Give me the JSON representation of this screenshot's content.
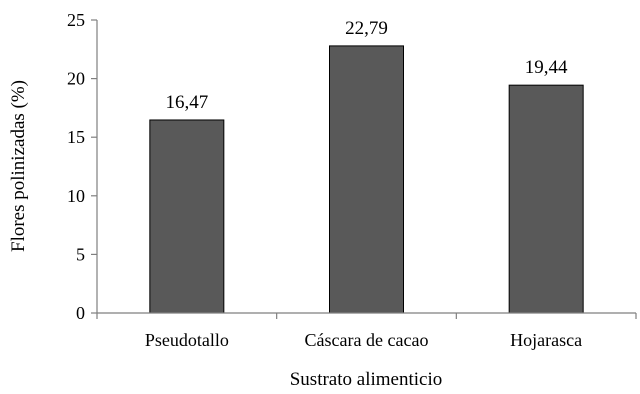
{
  "chart_data": {
    "type": "bar",
    "categories": [
      "Pseudotallo",
      "Cáscara de cacao",
      "Hojarasca"
    ],
    "values": [
      16.47,
      22.79,
      19.44
    ],
    "data_labels": [
      "16,47",
      "22,79",
      "19,44"
    ],
    "title": "",
    "xlabel": "Sustrato alimenticio",
    "ylabel": "Flores polinizadas (%)",
    "ylim": [
      0,
      25
    ],
    "yticks": [
      0,
      5,
      10,
      15,
      20,
      25
    ],
    "grid": false,
    "legend": "none",
    "colors": {
      "bar_fill": "#595959",
      "bar_stroke": "#000000",
      "axis": "#7f7f7f",
      "text": "#000000"
    }
  }
}
